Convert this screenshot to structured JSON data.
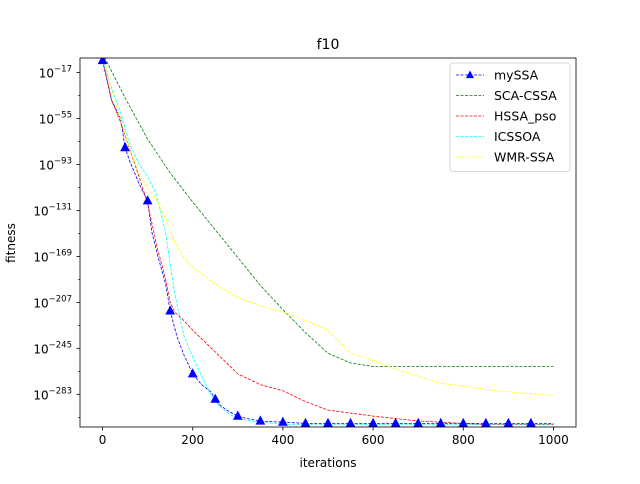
{
  "chart_data": {
    "type": "line",
    "title": "f10",
    "xlabel": "iterations",
    "ylabel": "fitness",
    "xlim": [
      -50,
      1050
    ],
    "y_scale": "log",
    "ylim_exponent": [
      -5,
      -310
    ],
    "x_ticks": [
      0,
      200,
      400,
      600,
      800,
      1000
    ],
    "y_ticks": [
      {
        "base": "10",
        "exp": "−17",
        "value_exp": -17
      },
      {
        "base": "10",
        "exp": "−55",
        "value_exp": -55
      },
      {
        "base": "10",
        "exp": "−93",
        "value_exp": -93
      },
      {
        "base": "10",
        "exp": "−131",
        "value_exp": -131
      },
      {
        "base": "10",
        "exp": "−169",
        "value_exp": -169
      },
      {
        "base": "10",
        "exp": "−207",
        "value_exp": -207
      },
      {
        "base": "10",
        "exp": "−245",
        "value_exp": -245
      },
      {
        "base": "10",
        "exp": "−283",
        "value_exp": -283
      }
    ],
    "grid": false,
    "legend_position": "top-right",
    "series": [
      {
        "name": "mySSA",
        "color": "#0000ff",
        "dash": "dashed",
        "marker": "triangle",
        "x": [
          0,
          20,
          40,
          50,
          60,
          80,
          100,
          110,
          125,
          140,
          150,
          165,
          180,
          200,
          220,
          240,
          250,
          260,
          280,
          300,
          320,
          350,
          400,
          450,
          500,
          550,
          600,
          650,
          700,
          750,
          800,
          850,
          900,
          950,
          1000
        ],
        "y_exp": [
          -7,
          -40,
          -55,
          -79,
          -90,
          -108,
          -123,
          -150,
          -172,
          -192,
          -214,
          -235,
          -250,
          -266,
          -275,
          -281,
          -287,
          -292,
          -297,
          -301,
          -303,
          -305,
          -306,
          -307,
          -307,
          -307,
          -307,
          -307,
          -307,
          -307,
          -307,
          -307,
          -307,
          -307,
          -307
        ],
        "marker_x": [
          0,
          50,
          100,
          150,
          200,
          250,
          300,
          350,
          400,
          450,
          500,
          550,
          600,
          650,
          700,
          750,
          800,
          850,
          900,
          950
        ]
      },
      {
        "name": "SCA-CSSA",
        "color": "#008000",
        "dash": "dashed",
        "x": [
          0,
          50,
          100,
          150,
          200,
          250,
          300,
          350,
          400,
          450,
          500,
          550,
          600,
          650,
          700,
          800,
          900,
          1000
        ],
        "y_exp": [
          -1,
          -38,
          -72,
          -100,
          -124,
          -147,
          -170,
          -193,
          -213,
          -232,
          -249,
          -257,
          -260,
          -260,
          -260,
          -260,
          -260,
          -260
        ]
      },
      {
        "name": "HSSA_pso",
        "color": "#ff0000",
        "dash": "dashed",
        "x": [
          0,
          20,
          40,
          60,
          80,
          100,
          120,
          140,
          150,
          160,
          180,
          200,
          250,
          300,
          350,
          400,
          450,
          500,
          600,
          700,
          800,
          850,
          900,
          1000
        ],
        "y_exp": [
          -5,
          -40,
          -58,
          -80,
          -102,
          -125,
          -160,
          -188,
          -207,
          -215,
          -222,
          -230,
          -248,
          -266,
          -275,
          -280,
          -289,
          -296,
          -301,
          -305,
          -307,
          -308,
          -308,
          -308
        ]
      },
      {
        "name": "ICSSOA",
        "color": "#00ffff",
        "dash": "dashed",
        "x": [
          0,
          20,
          40,
          60,
          80,
          100,
          120,
          140,
          160,
          180,
          200,
          220,
          240,
          260,
          280,
          300,
          330,
          350,
          380,
          400,
          500,
          600,
          700,
          800,
          900,
          1000
        ],
        "y_exp": [
          -7,
          -30,
          -50,
          -76,
          -92,
          -103,
          -118,
          -150,
          -200,
          -234,
          -252,
          -268,
          -283,
          -293,
          -299,
          -303,
          -305,
          -306,
          -307,
          -308,
          -308,
          -308,
          -308,
          -308,
          -308,
          -308
        ]
      },
      {
        "name": "WMR-SSA",
        "color": "#ffff00",
        "dash": "dashed",
        "x": [
          0,
          20,
          40,
          60,
          80,
          100,
          120,
          140,
          160,
          180,
          200,
          250,
          300,
          350,
          400,
          450,
          500,
          550,
          600,
          650,
          700,
          750,
          800,
          850,
          900,
          1000
        ],
        "y_exp": [
          0,
          -32,
          -56,
          -80,
          -100,
          -112,
          -122,
          -138,
          -157,
          -170,
          -178,
          -192,
          -203,
          -210,
          -215,
          -222,
          -230,
          -249,
          -255,
          -262,
          -268,
          -274,
          -276,
          -279,
          -281,
          -284
        ]
      }
    ]
  }
}
